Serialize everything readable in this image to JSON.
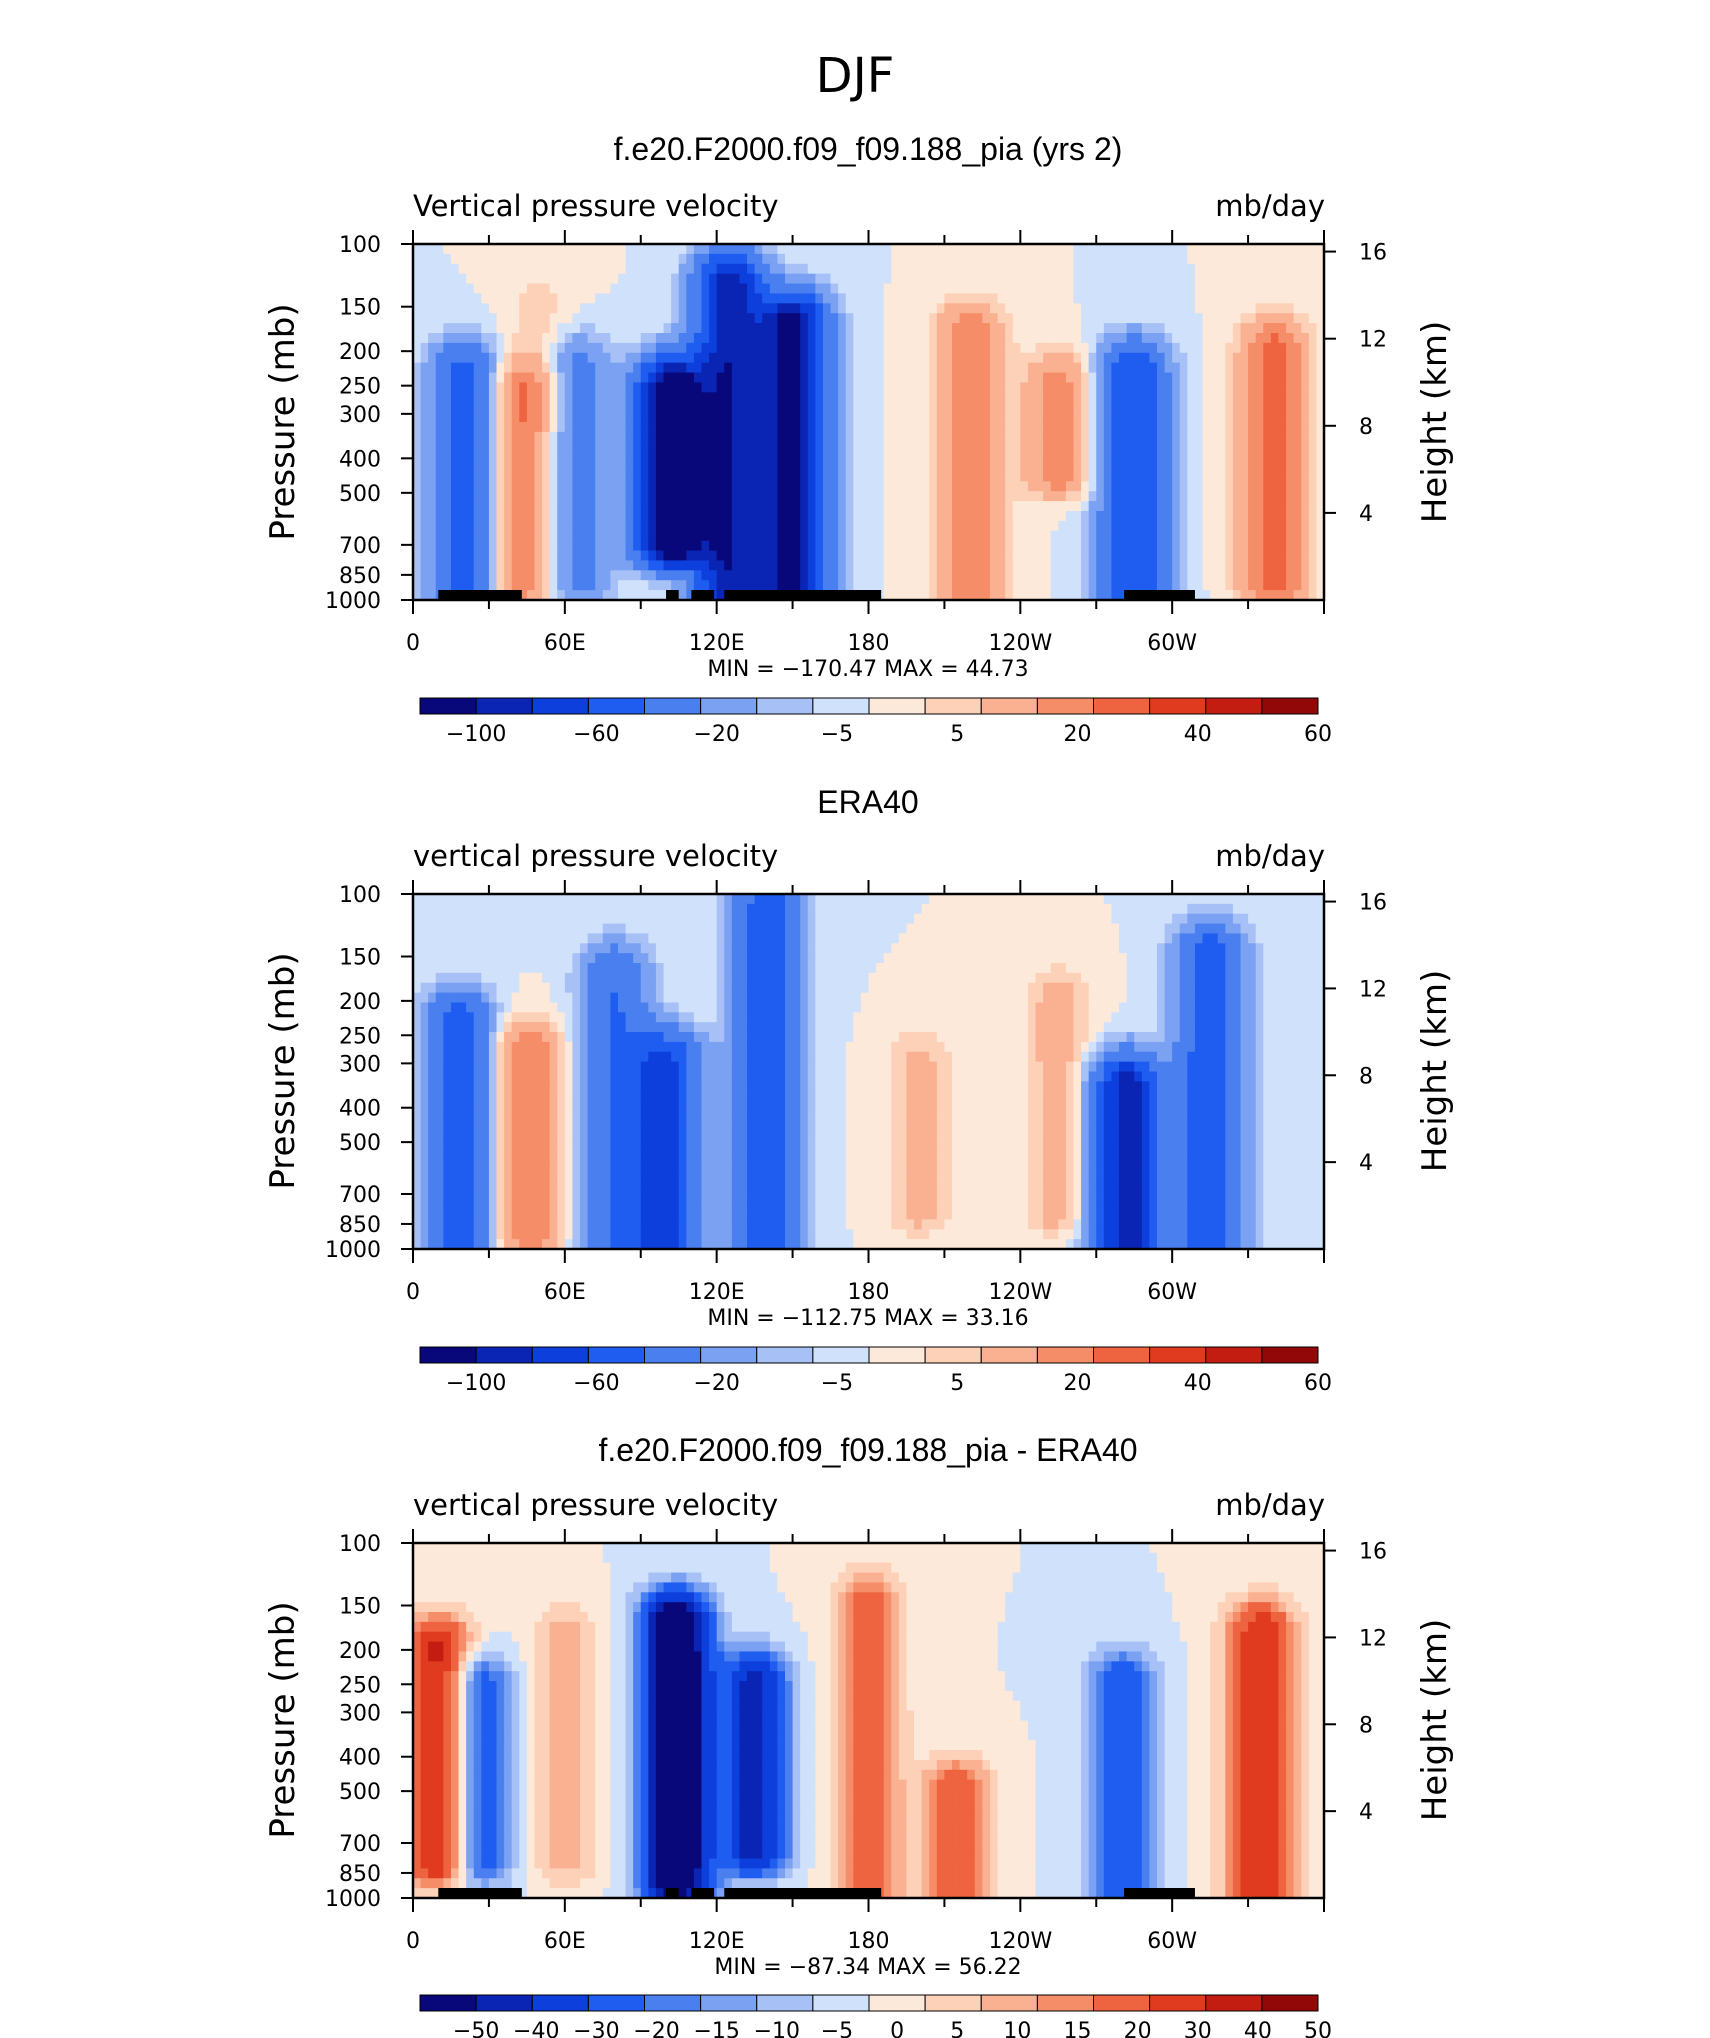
{
  "figure": {
    "title": "DJF"
  },
  "panels": [
    {
      "title": "f.e20.F2000.f09_f09.188_pia (yrs 2)",
      "left_label": "Vertical pressure velocity",
      "right_label": "mb/day",
      "ylabel": "Pressure (mb)",
      "y2label": "Height (km)",
      "stats": "MIN = −170.47   MAX =   44.73",
      "colorbar_labels": [
        "−100",
        "−60",
        "−20",
        "−5",
        "5",
        "20",
        "40",
        "60"
      ]
    },
    {
      "title": "ERA40",
      "left_label": "vertical pressure velocity",
      "right_label": "mb/day",
      "ylabel": "Pressure (mb)",
      "y2label": "Height (km)",
      "stats": "MIN = −112.75   MAX =   33.16",
      "colorbar_labels": [
        "−100",
        "−60",
        "−20",
        "−5",
        "5",
        "20",
        "40",
        "60"
      ]
    },
    {
      "title": "f.e20.F2000.f09_f09.188_pia - ERA40",
      "left_label": "vertical pressure velocity",
      "right_label": "mb/day",
      "ylabel": "Pressure (mb)",
      "y2label": "Height (km)",
      "stats": "MIN = −87.34   MAX =   56.22",
      "colorbar_labels": [
        "−50",
        "−40",
        "−30",
        "−20",
        "−15",
        "−10",
        "−5",
        "0",
        "5",
        "10",
        "15",
        "20",
        "30",
        "40",
        "50"
      ]
    }
  ],
  "chart_data": [
    {
      "type": "heatmap",
      "title": "f.e20.F2000.f09_f09.188_pia (yrs 2)",
      "xlabel": "",
      "ylabel": "Pressure (mb)",
      "y2label": "Height (km)",
      "x_ticks": [
        "0",
        "60E",
        "120E",
        "180",
        "120W",
        "60W"
      ],
      "x_tick_values": [
        0,
        60,
        120,
        180,
        240,
        300
      ],
      "xlim": [
        0,
        360
      ],
      "y_ticks": [
        100,
        150,
        200,
        250,
        300,
        400,
        500,
        700,
        850,
        1000
      ],
      "ylim": [
        1000,
        100
      ],
      "y_scale": "log",
      "y2_ticks": [
        4,
        8,
        12,
        16
      ],
      "units": "mb/day",
      "min": -170.47,
      "max": 44.73,
      "levels": [
        -120,
        -100,
        -80,
        -60,
        -40,
        -20,
        -10,
        -5,
        0,
        5,
        10,
        20,
        30,
        40,
        50,
        60,
        70
      ],
      "colors": [
        "#08087a",
        "#0a24b4",
        "#0d3fdc",
        "#1f5df0",
        "#4a7ff0",
        "#7aa1f2",
        "#a7c0f5",
        "#d0e1fb",
        "#fde9d9",
        "#fdd0b8",
        "#fab192",
        "#f58d68",
        "#ee6340",
        "#e03b1f",
        "#c31d12",
        "#920707"
      ],
      "features": [
        {
          "lon": 20,
          "p_top": 230,
          "p_bot": 1000,
          "v": -45
        },
        {
          "lon": 43,
          "p_top": 260,
          "p_bot": 920,
          "v": 28
        },
        {
          "lon": 50,
          "p_top": 150,
          "p_bot": 300,
          "v": 8
        },
        {
          "lon": 65,
          "p_top": 220,
          "p_bot": 900,
          "v": -25
        },
        {
          "lon": 125,
          "p_top": 130,
          "p_bot": 1000,
          "v": -95
        },
        {
          "lon": 150,
          "p_top": 170,
          "p_bot": 950,
          "v": -110
        },
        {
          "lon": 102,
          "p_top": 260,
          "p_bot": 700,
          "v": -130
        },
        {
          "lon": 220,
          "p_top": 180,
          "p_bot": 950,
          "v": 30
        },
        {
          "lon": 255,
          "p_top": 250,
          "p_bot": 450,
          "v": 25
        },
        {
          "lon": 285,
          "p_top": 230,
          "p_bot": 1000,
          "v": -60
        },
        {
          "lon": 340,
          "p_top": 200,
          "p_bot": 900,
          "v": 35
        }
      ],
      "land_mask": [
        [
          10,
          43
        ],
        [
          100,
          105
        ],
        [
          110,
          119
        ],
        [
          123,
          185
        ],
        [
          281,
          309
        ]
      ]
    },
    {
      "type": "heatmap",
      "title": "ERA40",
      "xlabel": "",
      "ylabel": "Pressure (mb)",
      "y2label": "Height (km)",
      "x_ticks": [
        "0",
        "60E",
        "120E",
        "180",
        "120W",
        "60W"
      ],
      "x_tick_values": [
        0,
        60,
        120,
        180,
        240,
        300
      ],
      "xlim": [
        0,
        360
      ],
      "y_ticks": [
        100,
        150,
        200,
        250,
        300,
        400,
        500,
        700,
        850,
        1000
      ],
      "ylim": [
        1000,
        100
      ],
      "y_scale": "log",
      "y2_ticks": [
        4,
        8,
        12,
        16
      ],
      "units": "mb/day",
      "min": -112.75,
      "max": 33.16,
      "levels": [
        -120,
        -100,
        -80,
        -60,
        -40,
        -20,
        -10,
        -5,
        0,
        5,
        10,
        20,
        30,
        40,
        50,
        60,
        70
      ],
      "colors": [
        "#08087a",
        "#0a24b4",
        "#0d3fdc",
        "#1f5df0",
        "#4a7ff0",
        "#7aa1f2",
        "#a7c0f5",
        "#d0e1fb",
        "#fde9d9",
        "#fdd0b8",
        "#fab192",
        "#f58d68",
        "#ee6340",
        "#e03b1f",
        "#c31d12",
        "#920707"
      ],
      "features": [
        {
          "lon": 18,
          "p_top": 230,
          "p_bot": 1000,
          "v": -50
        },
        {
          "lon": 45,
          "p_top": 280,
          "p_bot": 900,
          "v": 30
        },
        {
          "lon": 80,
          "p_top": 170,
          "p_bot": 1000,
          "v": -40
        },
        {
          "lon": 100,
          "p_top": 300,
          "p_bot": 1000,
          "v": -65
        },
        {
          "lon": 140,
          "p_top": 110,
          "p_bot": 1000,
          "v": -55
        },
        {
          "lon": 200,
          "p_top": 300,
          "p_bot": 800,
          "v": 12
        },
        {
          "lon": 255,
          "p_top": 200,
          "p_bot": 800,
          "v": 14
        },
        {
          "lon": 282,
          "p_top": 350,
          "p_bot": 1000,
          "v": -90
        },
        {
          "lon": 315,
          "p_top": 150,
          "p_bot": 1000,
          "v": -55
        }
      ],
      "land_mask": []
    },
    {
      "type": "heatmap",
      "title": "f.e20.F2000.f09_f09.188_pia - ERA40",
      "xlabel": "",
      "ylabel": "Pressure (mb)",
      "y2label": "Height (km)",
      "x_ticks": [
        "0",
        "60E",
        "120E",
        "180",
        "120W",
        "60W"
      ],
      "x_tick_values": [
        0,
        60,
        120,
        180,
        240,
        300
      ],
      "xlim": [
        0,
        360
      ],
      "y_ticks": [
        100,
        150,
        200,
        250,
        300,
        400,
        500,
        700,
        850,
        1000
      ],
      "ylim": [
        1000,
        100
      ],
      "y_scale": "log",
      "y2_ticks": [
        4,
        8,
        12,
        16
      ],
      "units": "mb/day",
      "min": -87.34,
      "max": 56.22,
      "levels": [
        -60,
        -50,
        -40,
        -30,
        -20,
        -15,
        -10,
        -5,
        0,
        5,
        10,
        15,
        20,
        30,
        40,
        50,
        60
      ],
      "colors": [
        "#08087a",
        "#0a24b4",
        "#0d3fdc",
        "#1f5df0",
        "#4a7ff0",
        "#7aa1f2",
        "#a7c0f5",
        "#d0e1fb",
        "#fde9d9",
        "#fdd0b8",
        "#fab192",
        "#f58d68",
        "#ee6340",
        "#e03b1f",
        "#c31d12",
        "#920707"
      ],
      "features": [
        {
          "lon": 10,
          "p_top": 200,
          "p_bot": 800,
          "v": 45
        },
        {
          "lon": 25,
          "p_top": 250,
          "p_bot": 800,
          "v": -30
        },
        {
          "lon": 60,
          "p_top": 180,
          "p_bot": 800,
          "v": 12
        },
        {
          "lon": 104,
          "p_top": 170,
          "p_bot": 900,
          "v": -75
        },
        {
          "lon": 135,
          "p_top": 250,
          "p_bot": 750,
          "v": -45
        },
        {
          "lon": 180,
          "p_top": 150,
          "p_bot": 950,
          "v": 25
        },
        {
          "lon": 215,
          "p_top": 500,
          "p_bot": 950,
          "v": 28
        },
        {
          "lon": 280,
          "p_top": 250,
          "p_bot": 1000,
          "v": -30
        },
        {
          "lon": 335,
          "p_top": 180,
          "p_bot": 1000,
          "v": 40
        }
      ],
      "land_mask": [
        [
          10,
          43
        ],
        [
          100,
          105
        ],
        [
          110,
          119
        ],
        [
          123,
          185
        ],
        [
          281,
          309
        ]
      ]
    }
  ]
}
